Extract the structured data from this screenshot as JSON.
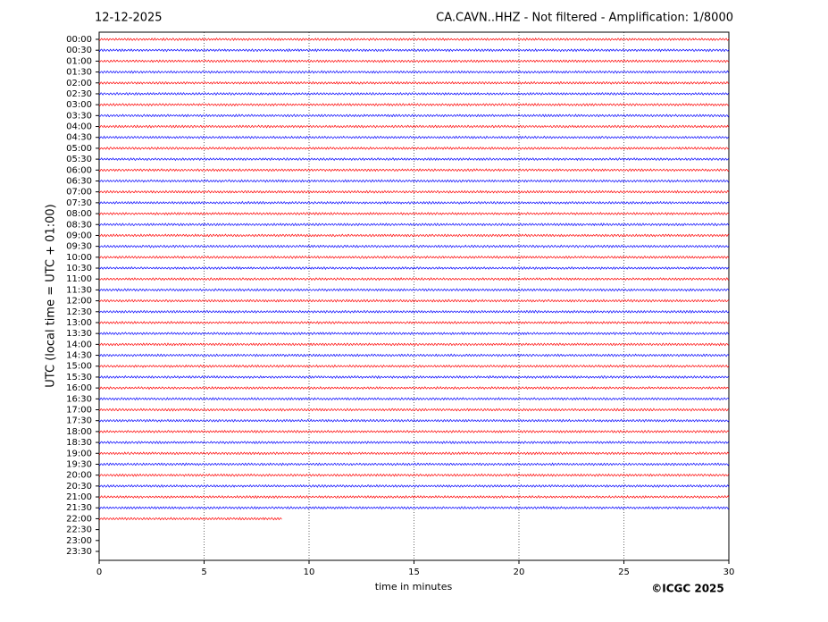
{
  "chart_data": {
    "type": "helicorder",
    "title": "12-12-2025",
    "subtitle": "CA.CAVN..HHZ - Not filtered - Amplification: 1/8000",
    "ylabel": "UTC (local time = UTC + 01:00)",
    "xlabel": "time in minutes",
    "credit": "©ICGC 2025",
    "categories": [
      "00:00",
      "00:30",
      "01:00",
      "01:30",
      "02:00",
      "02:30",
      "03:00",
      "03:30",
      "04:00",
      "04:30",
      "05:00",
      "05:30",
      "06:00",
      "06:30",
      "07:00",
      "07:30",
      "08:00",
      "08:30",
      "09:00",
      "09:30",
      "10:00",
      "10:30",
      "11:00",
      "11:30",
      "12:00",
      "12:30",
      "13:00",
      "13:30",
      "14:00",
      "14:30",
      "15:00",
      "15:30",
      "16:00",
      "16:30",
      "17:00",
      "17:30",
      "18:00",
      "18:30",
      "19:00",
      "19:30",
      "20:00",
      "20:30",
      "21:00",
      "21:30",
      "22:00",
      "22:30",
      "23:00",
      "23:30"
    ],
    "values": [
      30,
      30,
      30,
      30,
      30,
      30,
      30,
      30,
      30,
      30,
      30,
      30,
      30,
      30,
      30,
      30,
      30,
      30,
      30,
      30,
      30,
      30,
      30,
      30,
      30,
      30,
      30,
      30,
      30,
      30,
      30,
      30,
      30,
      30,
      30,
      30,
      30,
      30,
      30,
      30,
      30,
      30,
      30,
      30,
      8.7,
      null,
      null,
      null
    ],
    "colors": [
      "#ff0000",
      "#0000ff"
    ],
    "xlim": [
      0,
      30
    ],
    "xticks": [
      0,
      5,
      10,
      15,
      20,
      25,
      30
    ],
    "grid": true
  }
}
